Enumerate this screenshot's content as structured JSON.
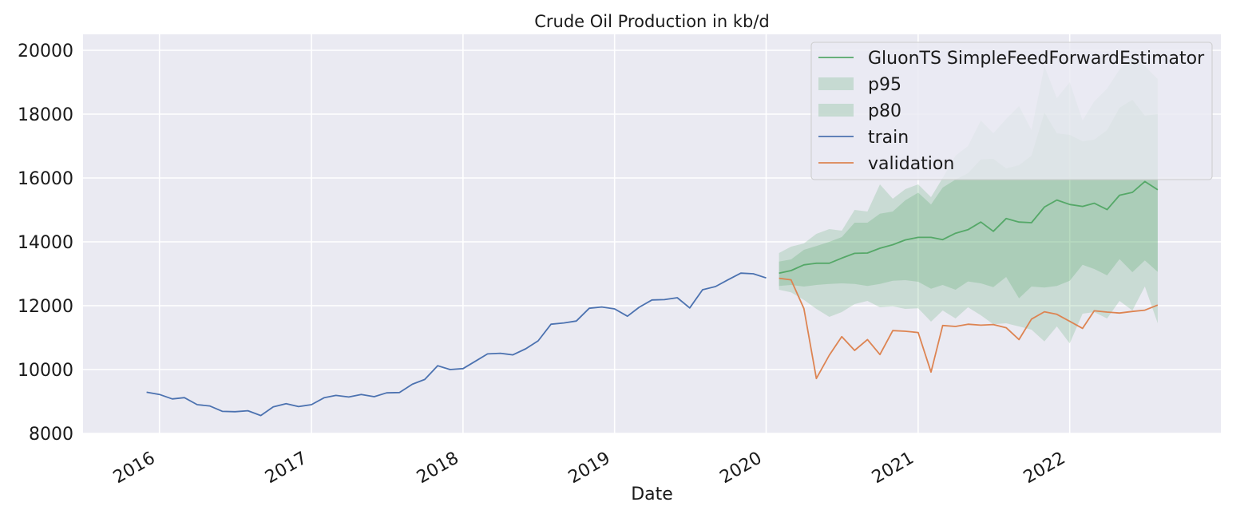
{
  "chart_data": {
    "type": "line",
    "title": "Crude Oil Production in kb/d",
    "xlabel": "Date",
    "ylabel": "",
    "xlim": [
      "2015-07-01",
      "2022-12-31"
    ],
    "ylim": [
      8000,
      20500
    ],
    "yticks": [
      8000,
      10000,
      12000,
      14000,
      16000,
      18000,
      20000
    ],
    "xticks": [
      "2016-01-01",
      "2017-01-01",
      "2018-01-01",
      "2019-01-01",
      "2020-01-01",
      "2021-01-01",
      "2022-01-01"
    ],
    "xticklabels": [
      "2016",
      "2017",
      "2018",
      "2019",
      "2020",
      "2021",
      "2022"
    ],
    "grid": true,
    "legend_position": "top-right",
    "background_color": "#eaeaf2",
    "series": [
      {
        "name": "train",
        "color": "#4c72b0",
        "start": "2015-12",
        "values": [
          9290,
          9220,
          9080,
          9120,
          8900,
          8860,
          8690,
          8680,
          8710,
          8560,
          8830,
          8930,
          8840,
          8900,
          9120,
          9190,
          9140,
          9220,
          9150,
          9270,
          9280,
          9540,
          9690,
          10120,
          10000,
          10030,
          10270,
          10490,
          10510,
          10460,
          10650,
          10900,
          11420,
          11460,
          11520,
          11920,
          11960,
          11900,
          11670,
          11950,
          12180,
          12190,
          12250,
          11930,
          12500,
          12600,
          12810,
          13020,
          13000,
          12870
        ]
      },
      {
        "name": "validation",
        "color": "#dd8452",
        "start": "2020-02",
        "values": [
          12860,
          12810,
          11910,
          9720,
          10450,
          11030,
          10600,
          10940,
          10470,
          11220,
          11200,
          11160,
          9920,
          11380,
          11350,
          11420,
          11390,
          11410,
          11310,
          10940,
          11580,
          11810,
          11730,
          11510,
          11290,
          11840,
          11800,
          11770,
          11820,
          11860,
          12020
        ]
      },
      {
        "name": "GluonTS SimpleFeedForwardEstimator",
        "color": "#55a868",
        "start": "2020-02",
        "values": [
          13020,
          13100,
          13280,
          13330,
          13330,
          13490,
          13640,
          13650,
          13800,
          13910,
          14060,
          14140,
          14140,
          14070,
          14270,
          14380,
          14620,
          14330,
          14730,
          14620,
          14600,
          15090,
          15310,
          15170,
          15110,
          15210,
          15010,
          15460,
          15550,
          15890,
          15630
        ]
      }
    ],
    "bands": [
      {
        "name": "p95",
        "color": "#55a868",
        "start": "2020-02",
        "lower": [
          12500,
          12420,
          12180,
          11900,
          11650,
          11800,
          12050,
          12150,
          11950,
          11980,
          11900,
          11920,
          11500,
          11850,
          11600,
          11950,
          11700,
          11420,
          11450,
          11350,
          11250,
          10880,
          11350,
          10820,
          11750,
          11800,
          11600,
          12150,
          11850,
          12600,
          11450
        ],
        "upper": [
          13650,
          13850,
          13950,
          14250,
          14400,
          14350,
          15000,
          14950,
          15800,
          15350,
          15650,
          15800,
          15400,
          16000,
          16700,
          17000,
          17800,
          17400,
          17850,
          18250,
          17500,
          19500,
          18500,
          19000,
          17800,
          18400,
          18800,
          19400,
          19800,
          19500,
          19100
        ]
      },
      {
        "name": "p80",
        "color": "#55a868",
        "start": "2020-02",
        "lower": [
          12620,
          12650,
          12600,
          12650,
          12680,
          12700,
          12680,
          12620,
          12680,
          12780,
          12800,
          12750,
          12530,
          12650,
          12500,
          12760,
          12700,
          12580,
          12900,
          12230,
          12600,
          12570,
          12620,
          12780,
          13280,
          13150,
          12950,
          13460,
          13050,
          13420,
          13060
        ],
        "upper": [
          13380,
          13450,
          13750,
          13870,
          14000,
          14150,
          14600,
          14600,
          14880,
          14950,
          15300,
          15540,
          15170,
          15700,
          15950,
          16150,
          16580,
          16600,
          16300,
          16400,
          16700,
          18050,
          17400,
          17350,
          17150,
          17200,
          17500,
          18200,
          18450,
          17950,
          18000
        ]
      }
    ],
    "legend": {
      "items": [
        {
          "label": "GluonTS SimpleFeedForwardEstimator",
          "kind": "line",
          "color": "#55a868"
        },
        {
          "label": "p95",
          "kind": "patch",
          "color": "#55a868"
        },
        {
          "label": "p80",
          "kind": "patch",
          "color": "#55a868"
        },
        {
          "label": "train",
          "kind": "line",
          "color": "#4c72b0"
        },
        {
          "label": "validation",
          "kind": "line",
          "color": "#dd8452"
        }
      ]
    }
  }
}
